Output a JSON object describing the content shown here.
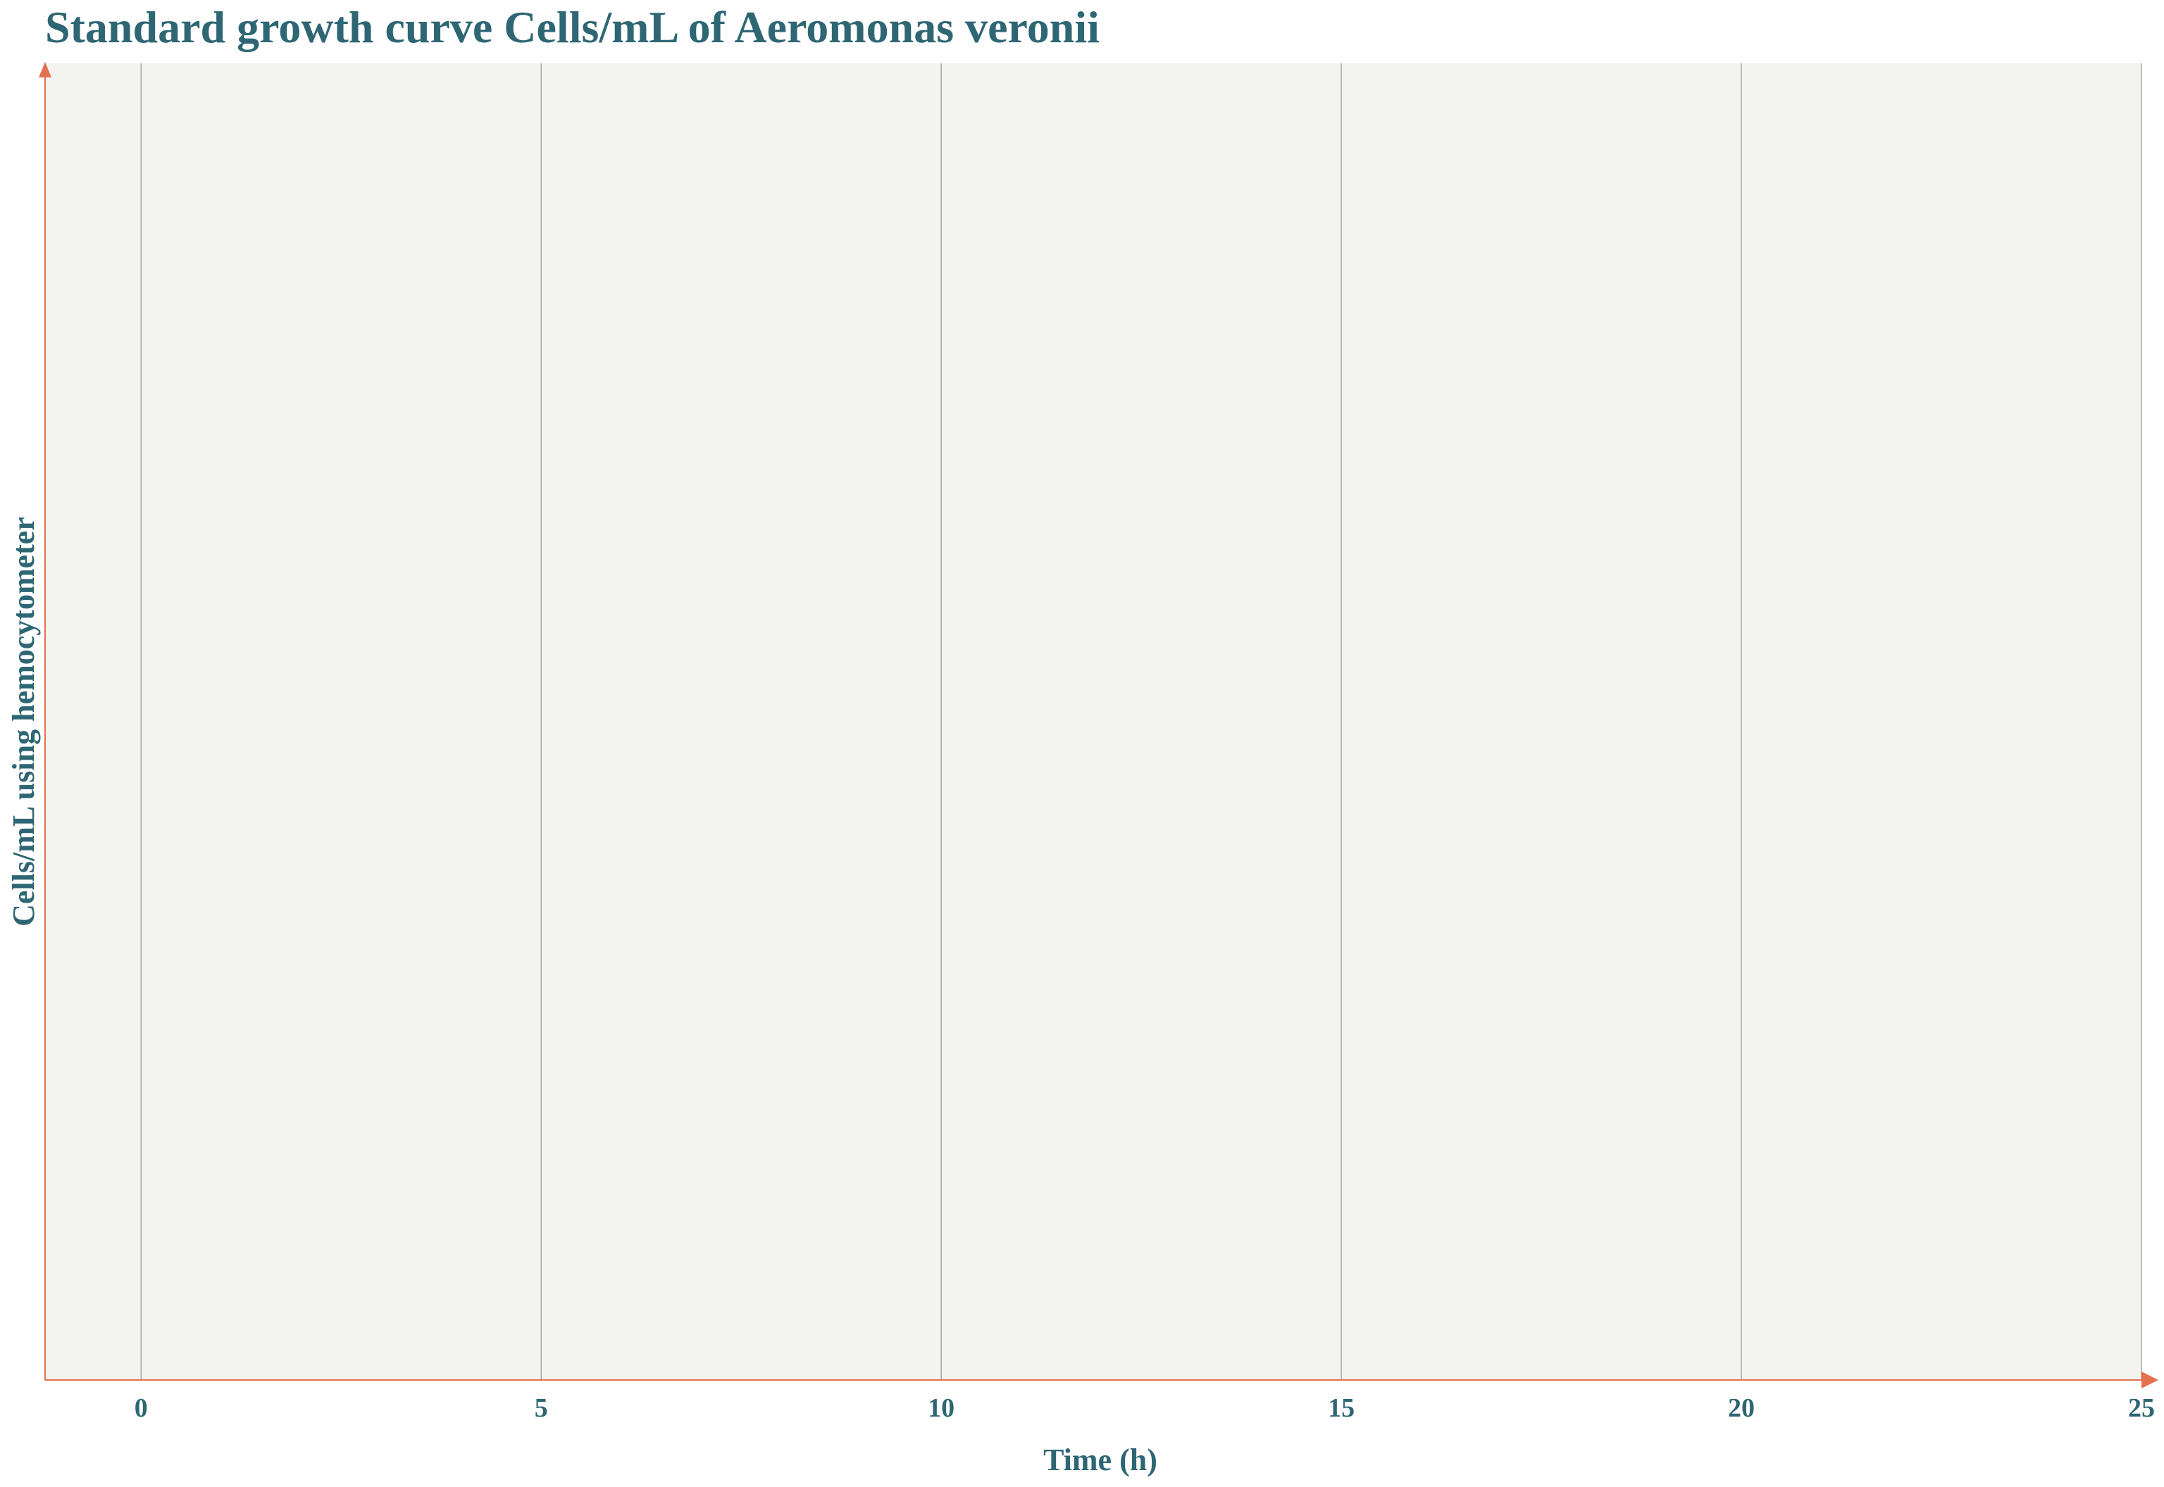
{
  "colors": {
    "text": "#2e6674",
    "axis": "#e4714f",
    "plot_background": "#f3f3ef",
    "grid": "#a4a7ad",
    "page_background": "#ffffff"
  },
  "chart_data": {
    "type": "scatter",
    "title": "Standard growth curve Cells/mL of Aeromonas veronii",
    "xlabel": "Time (h)",
    "ylabel": "Cells/mL using hemocytometer",
    "xlim": [
      -1.2,
      25
    ],
    "x_ticks": [
      0,
      5,
      10,
      15,
      20,
      25
    ],
    "x_tick_labels": [
      "0",
      "5",
      "10",
      "15",
      "20",
      "25"
    ],
    "y_ticks": [],
    "grid": {
      "x": true,
      "y": false
    },
    "series": []
  }
}
